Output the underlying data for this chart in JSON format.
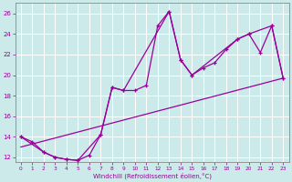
{
  "xlabel": "Windchill (Refroidissement éolien,°C)",
  "bg_color": "#cceaea",
  "line_color": "#990099",
  "grid_color": "#ffffff",
  "xlim": [
    -0.5,
    23.5
  ],
  "ylim": [
    11.5,
    27
  ],
  "yticks": [
    12,
    14,
    16,
    18,
    20,
    22,
    24,
    26
  ],
  "xticks": [
    0,
    1,
    2,
    3,
    4,
    5,
    6,
    7,
    8,
    9,
    10,
    11,
    12,
    13,
    14,
    15,
    16,
    17,
    18,
    19,
    20,
    21,
    22,
    23
  ],
  "main_x": [
    0,
    1,
    2,
    3,
    4,
    5,
    6,
    7,
    8,
    9,
    10,
    11,
    12,
    13,
    14,
    15,
    16,
    17,
    18,
    19,
    20,
    21,
    22,
    23
  ],
  "main_y": [
    14.0,
    13.5,
    12.5,
    12.0,
    11.8,
    11.7,
    12.2,
    14.2,
    18.8,
    18.5,
    18.5,
    19.0,
    24.8,
    26.2,
    21.5,
    20.0,
    20.7,
    21.2,
    22.5,
    23.5,
    24.0,
    22.2,
    24.8,
    19.7
  ],
  "trend_x": [
    0,
    23
  ],
  "trend_y": [
    13.0,
    19.7
  ],
  "envelope_x": [
    0,
    2,
    3,
    4,
    5,
    7,
    8,
    9,
    13,
    14,
    15,
    19,
    20,
    22,
    23
  ],
  "envelope_y": [
    14.0,
    12.5,
    12.0,
    11.8,
    11.7,
    14.2,
    18.8,
    18.5,
    26.2,
    21.5,
    20.0,
    23.5,
    24.0,
    24.8,
    19.7
  ]
}
